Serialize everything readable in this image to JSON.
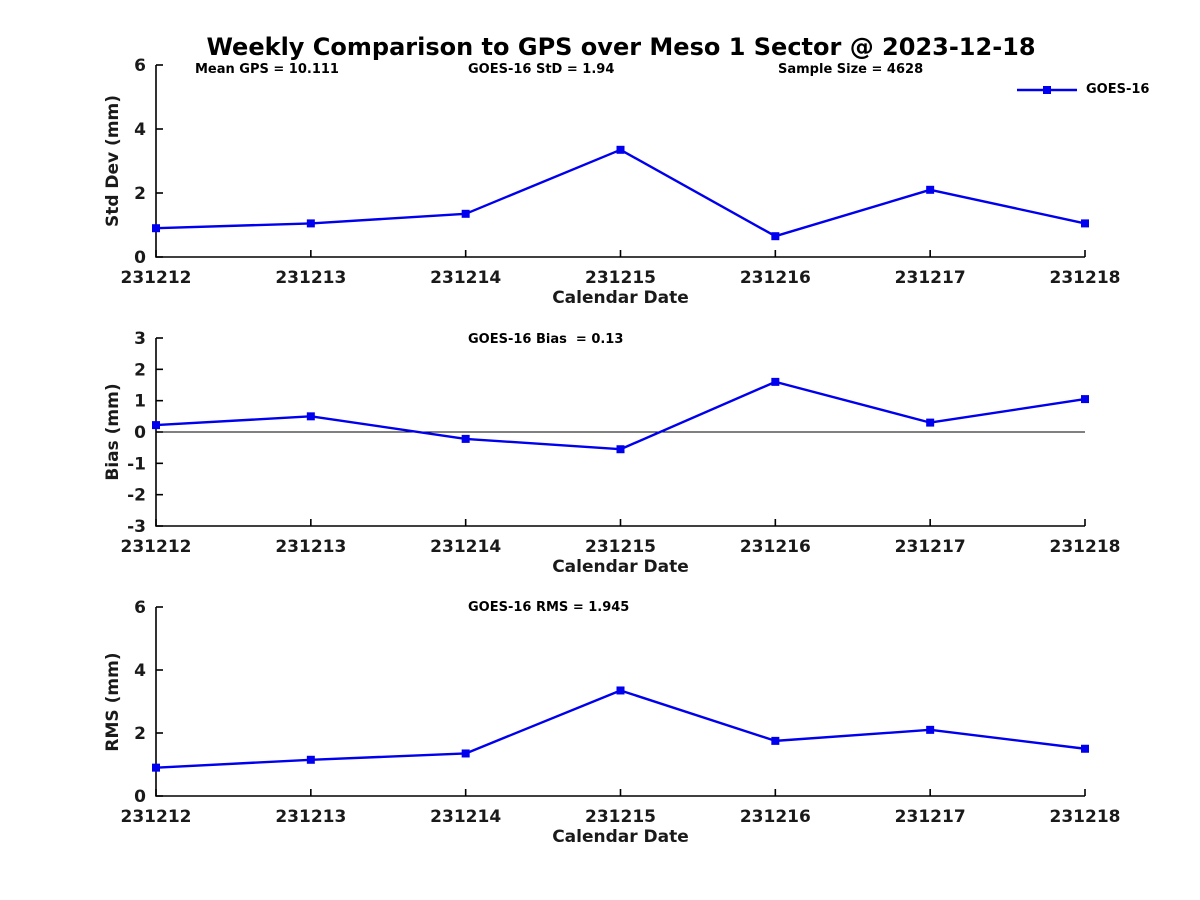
{
  "title": "Weekly Comparison to GPS over Meso 1 Sector @ 2023-12-18",
  "annotations": {
    "mean_gps": "Mean GPS = 10.111",
    "sample_size": "Sample Size = 4628"
  },
  "legend": {
    "label": "GOES-16",
    "color": "#0000ee",
    "position": "top-right"
  },
  "chart_data": [
    {
      "id": "std-dev",
      "type": "line",
      "annotation": "GOES-16 StD = 1.94",
      "xlabel": "Calendar Date",
      "ylabel": "Std Dev (mm)",
      "categories": [
        "231212",
        "231213",
        "231214",
        "231215",
        "231216",
        "231217",
        "231218"
      ],
      "series": [
        {
          "name": "GOES-16",
          "color": "#0000ee",
          "marker": "square",
          "values": [
            0.9,
            1.05,
            1.35,
            3.35,
            0.65,
            2.1,
            1.05
          ]
        }
      ],
      "ylim": [
        0,
        6
      ],
      "yticks": [
        0,
        2,
        4,
        6
      ],
      "grid": false,
      "zero_line": false
    },
    {
      "id": "bias",
      "type": "line",
      "annotation": "GOES-16 Bias  = 0.13",
      "xlabel": "Calendar Date",
      "ylabel": "Bias (mm)",
      "categories": [
        "231212",
        "231213",
        "231214",
        "231215",
        "231216",
        "231217",
        "231218"
      ],
      "series": [
        {
          "name": "GOES-16",
          "color": "#0000ee",
          "marker": "square",
          "values": [
            0.22,
            0.5,
            -0.22,
            -0.55,
            1.6,
            0.3,
            1.05
          ]
        }
      ],
      "ylim": [
        -3,
        3
      ],
      "yticks": [
        -3,
        -2,
        -1,
        0,
        1,
        2,
        3
      ],
      "grid": false,
      "zero_line": true
    },
    {
      "id": "rms",
      "type": "line",
      "annotation": "GOES-16 RMS = 1.945",
      "xlabel": "Calendar Date",
      "ylabel": "RMS (mm)",
      "categories": [
        "231212",
        "231213",
        "231214",
        "231215",
        "231216",
        "231217",
        "231218"
      ],
      "series": [
        {
          "name": "GOES-16",
          "color": "#0000ee",
          "marker": "square",
          "values": [
            0.9,
            1.15,
            1.35,
            3.35,
            1.75,
            2.1,
            1.5
          ]
        }
      ],
      "ylim": [
        0,
        6
      ],
      "yticks": [
        0,
        2,
        4,
        6
      ],
      "grid": false,
      "zero_line": false
    }
  ]
}
